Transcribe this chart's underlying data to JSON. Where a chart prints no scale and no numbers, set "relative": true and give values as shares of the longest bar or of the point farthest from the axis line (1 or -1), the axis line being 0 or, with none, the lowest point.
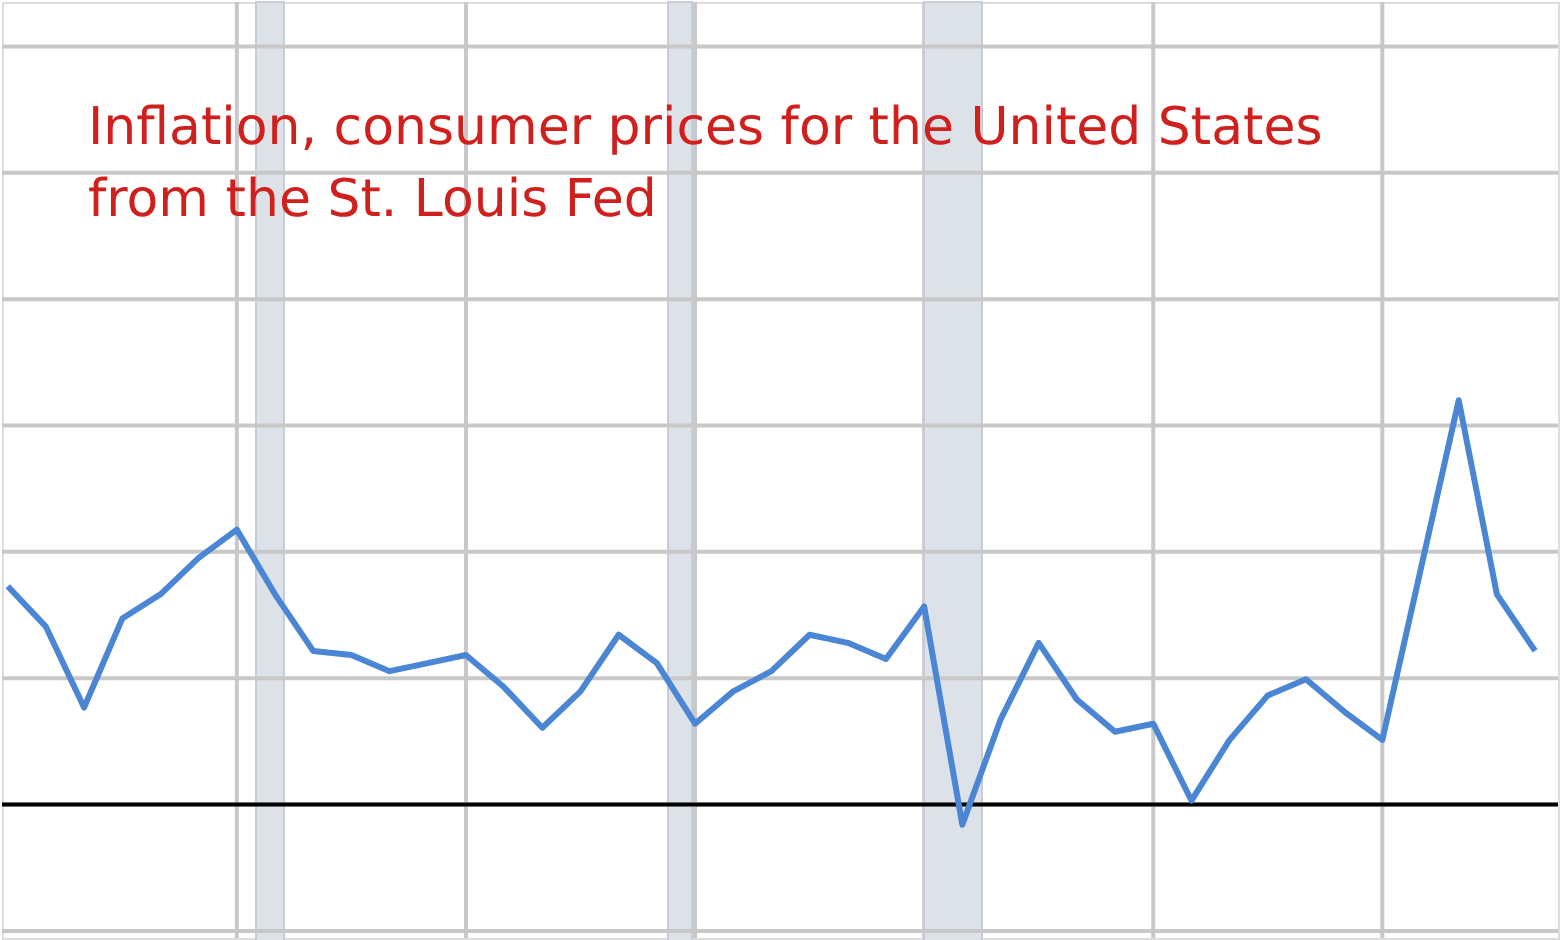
{
  "chart_data": {
    "type": "line",
    "title": "Inflation, consumer prices for the United States\nfrom the St. Louis Fed",
    "relative": true,
    "categories": [
      null,
      null,
      null,
      null,
      null,
      null,
      null,
      null,
      null,
      null,
      null,
      null,
      null,
      null,
      null,
      null,
      null,
      null,
      null,
      null,
      null,
      null,
      null,
      null,
      null,
      null,
      null,
      null,
      null,
      null,
      null,
      null,
      null,
      null,
      null,
      null,
      null,
      null,
      null,
      null,
      null
    ],
    "series": [
      {
        "color": "#4a86d4",
        "values": [
          0.54,
          0.44,
          0.24,
          0.46,
          0.52,
          0.61,
          0.68,
          0.52,
          0.38,
          0.37,
          0.33,
          0.35,
          0.37,
          0.29,
          0.19,
          0.28,
          0.42,
          0.35,
          0.2,
          0.28,
          0.33,
          0.42,
          0.4,
          0.36,
          0.49,
          -0.05,
          0.21,
          0.4,
          0.26,
          0.18,
          0.2,
          0.01,
          0.16,
          0.27,
          0.31,
          0.23,
          0.16,
          0.58,
          1,
          0.52,
          0.38
        ]
      }
    ],
    "grid": true,
    "line_style": "solid",
    "marker": "none"
  }
}
